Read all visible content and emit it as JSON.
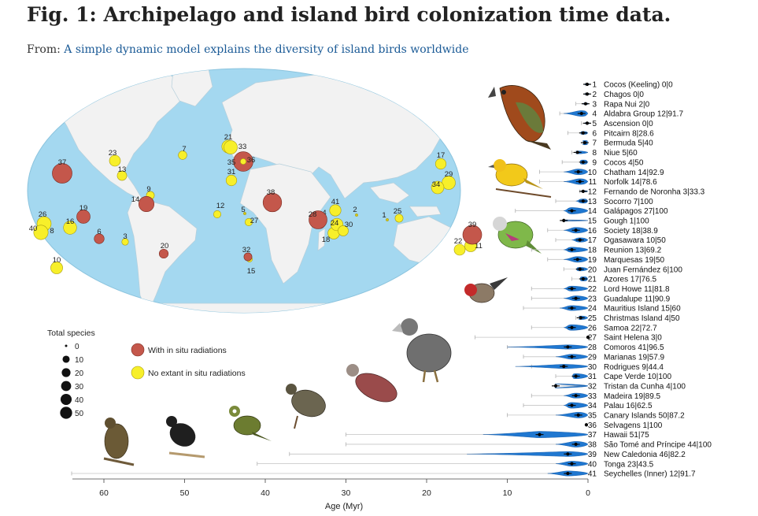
{
  "title": "Fig. 1: Archipelago and island bird colonization time data.",
  "from_label": "From:",
  "article_link": "A simple dynamic model explains the diversity of island birds worldwide",
  "map": {
    "ocean_color": "#a4d8f0",
    "land_color": "#f2f2f2",
    "radiation_color": "#c4574b",
    "no_radiation_color": "#f7ef2a",
    "islands": [
      {
        "label": "1",
        "kind": "none",
        "size": 0
      },
      {
        "label": "2",
        "kind": "none",
        "size": 0
      },
      {
        "label": "3",
        "kind": "none",
        "size": 2
      },
      {
        "label": "4",
        "kind": "radiation",
        "size": 12
      },
      {
        "label": "5",
        "kind": "none",
        "size": 0
      },
      {
        "label": "6",
        "kind": "radiation",
        "size": 8
      },
      {
        "label": "7",
        "kind": "none",
        "size": 5
      },
      {
        "label": "8",
        "kind": "none",
        "size": 5
      },
      {
        "label": "9",
        "kind": "none",
        "size": 4
      },
      {
        "label": "10",
        "kind": "none",
        "size": 14
      },
      {
        "label": "11",
        "kind": "none",
        "size": 14
      },
      {
        "label": "12",
        "kind": "none",
        "size": 3
      },
      {
        "label": "13",
        "kind": "none",
        "size": 7
      },
      {
        "label": "14",
        "kind": "radiation",
        "size": 27
      },
      {
        "label": "15",
        "kind": "none",
        "size": 1
      },
      {
        "label": "16",
        "kind": "none",
        "size": 18
      },
      {
        "label": "17",
        "kind": "none",
        "size": 10
      },
      {
        "label": "18",
        "kind": "none",
        "size": 13
      },
      {
        "label": "19",
        "kind": "radiation",
        "size": 19
      },
      {
        "label": "20",
        "kind": "radiation",
        "size": 6
      },
      {
        "label": "21",
        "kind": "none",
        "size": 17
      },
      {
        "label": "22",
        "kind": "none",
        "size": 11
      },
      {
        "label": "23",
        "kind": "none",
        "size": 11
      },
      {
        "label": "24",
        "kind": "none",
        "size": 15
      },
      {
        "label": "25",
        "kind": "none",
        "size": 4
      },
      {
        "label": "26",
        "kind": "none",
        "size": 22
      },
      {
        "label": "27",
        "kind": "none",
        "size": 3
      },
      {
        "label": "28",
        "kind": "radiation",
        "size": 41
      },
      {
        "label": "29",
        "kind": "none",
        "size": 19
      },
      {
        "label": "30",
        "kind": "none",
        "size": 9
      },
      {
        "label": "31",
        "kind": "none",
        "size": 10
      },
      {
        "label": "32",
        "kind": "radiation",
        "size": 4
      },
      {
        "label": "33",
        "kind": "none",
        "size": 19
      },
      {
        "label": "34",
        "kind": "none",
        "size": 16
      },
      {
        "label": "35",
        "kind": "radiation",
        "size": 50
      },
      {
        "label": "36",
        "kind": "none",
        "size": 1
      },
      {
        "label": "37",
        "kind": "radiation",
        "size": 51
      },
      {
        "label": "38",
        "kind": "radiation",
        "size": 44
      },
      {
        "label": "39",
        "kind": "radiation",
        "size": 46
      },
      {
        "label": "40",
        "kind": "none",
        "size": 23
      },
      {
        "label": "41",
        "kind": "none",
        "size": 12
      }
    ]
  },
  "legend": {
    "size_title": "Total species",
    "sizes": [
      "0",
      "10",
      "20",
      "30",
      "40",
      "50"
    ],
    "radiation_label": "With in situ radiations",
    "no_radiation_label": "No extant in situ radiations"
  },
  "chart_data": {
    "type": "violin",
    "xlabel": "Age (Myr)",
    "xlim": [
      65,
      0
    ],
    "xticks": [
      "60",
      "50",
      "40",
      "30",
      "20",
      "10",
      "0"
    ],
    "series_color": "#1f77d0",
    "rows": [
      {
        "num": "1",
        "name": "Cocos (Keeling)",
        "stats": "0|0",
        "max_age": 0.3,
        "spread": 0.2,
        "median": 0.1,
        "width": 0.1
      },
      {
        "num": "2",
        "name": "Chagos",
        "stats": "0|0",
        "max_age": 0.3,
        "spread": 0.2,
        "median": 0.1,
        "width": 0.1
      },
      {
        "num": "3",
        "name": "Rapa Nui",
        "stats": "2|0",
        "max_age": 1.5,
        "spread": 0.4,
        "median": 0.3,
        "width": 0.15
      },
      {
        "num": "4",
        "name": "Aldabra Group",
        "stats": "12|91.7",
        "max_age": 3.5,
        "spread": 3,
        "median": 0.8,
        "width": 0.8
      },
      {
        "num": "5",
        "name": "Ascension",
        "stats": "0|0",
        "max_age": 0.8,
        "spread": 0.2,
        "median": 0.1,
        "width": 0.1
      },
      {
        "num": "6",
        "name": "Pitcairn",
        "stats": "8|28.6",
        "max_age": 2.5,
        "spread": 0.8,
        "median": 0.6,
        "width": 0.4
      },
      {
        "num": "7",
        "name": "Bermuda",
        "stats": "5|40",
        "max_age": 0.5,
        "spread": 0.4,
        "median": 0.4,
        "width": 0.6
      },
      {
        "num": "8",
        "name": "Niue",
        "stats": "5|60",
        "max_age": 2,
        "spread": 0.8,
        "median": 1.3,
        "width": 0.4
      },
      {
        "num": "9",
        "name": "Cocos",
        "stats": "4|50",
        "max_age": 3.2,
        "spread": 1,
        "median": 0.6,
        "width": 0.6
      },
      {
        "num": "10",
        "name": "Chatham",
        "stats": "14|92.9",
        "max_age": 6,
        "spread": 3,
        "median": 1.2,
        "width": 0.8
      },
      {
        "num": "11",
        "name": "Norfolk",
        "stats": "14|78.6",
        "max_age": 6,
        "spread": 3,
        "median": 1,
        "width": 0.8
      },
      {
        "num": "12",
        "name": "Fernando de Noronha",
        "stats": "3|33.3",
        "max_age": 1,
        "spread": 0.3,
        "median": 0.6,
        "width": 0.2
      },
      {
        "num": "13",
        "name": "Socorro",
        "stats": "7|100",
        "max_age": 4,
        "spread": 1.5,
        "median": 0.6,
        "width": 0.6
      },
      {
        "num": "14",
        "name": "Galápagos",
        "stats": "27|100",
        "max_age": 9,
        "spread": 3,
        "median": 2,
        "width": 0.9
      },
      {
        "num": "15",
        "name": "Gough",
        "stats": "1|100",
        "max_age": 3,
        "spread": 0.3,
        "median": 3,
        "width": 0.2
      },
      {
        "num": "16",
        "name": "Society",
        "stats": "18|38.9",
        "max_age": 5,
        "spread": 3,
        "median": 1.5,
        "width": 0.8
      },
      {
        "num": "17",
        "name": "Ogasawara",
        "stats": "10|50",
        "max_age": 4,
        "spread": 2,
        "median": 1,
        "width": 0.6
      },
      {
        "num": "18",
        "name": "Reunion",
        "stats": "13|69.2",
        "max_age": 7,
        "spread": 3,
        "median": 2,
        "width": 0.7
      },
      {
        "num": "19",
        "name": "Marquesas",
        "stats": "19|50",
        "max_age": 5,
        "spread": 3,
        "median": 1.3,
        "width": 0.8
      },
      {
        "num": "20",
        "name": "Juan Fernández",
        "stats": "6|100",
        "max_age": 3,
        "spread": 1.5,
        "median": 1,
        "width": 0.5
      },
      {
        "num": "21",
        "name": "Azores",
        "stats": "17|76.5",
        "max_age": 2,
        "spread": 1,
        "median": 0.6,
        "width": 0.6
      },
      {
        "num": "22",
        "name": "Lord Howe",
        "stats": "11|81.8",
        "max_age": 7,
        "spread": 3,
        "median": 2,
        "width": 0.7
      },
      {
        "num": "23",
        "name": "Guadalupe",
        "stats": "11|90.9",
        "max_age": 7,
        "spread": 3,
        "median": 1.5,
        "width": 0.7
      },
      {
        "num": "24",
        "name": "Mauritius Island",
        "stats": "15|60",
        "max_age": 8,
        "spread": 3.5,
        "median": 2,
        "width": 0.7
      },
      {
        "num": "25",
        "name": "Christmas Island",
        "stats": "4|50",
        "max_age": 1.5,
        "spread": 0.8,
        "median": 0.9,
        "width": 0.5
      },
      {
        "num": "26",
        "name": "Samoa",
        "stats": "22|72.7",
        "max_age": 7,
        "spread": 3,
        "median": 2,
        "width": 0.8
      },
      {
        "num": "27",
        "name": "Saint Helena",
        "stats": "3|0",
        "max_age": 14,
        "spread": 0,
        "median": 0,
        "width": 0
      },
      {
        "num": "28",
        "name": "Comoros",
        "stats": "41|96.5",
        "max_age": 10,
        "spread": 10,
        "median": 2.5,
        "width": 0.6
      },
      {
        "num": "29",
        "name": "Marianas",
        "stats": "19|57.9",
        "max_age": 8,
        "spread": 4,
        "median": 2,
        "width": 0.7
      },
      {
        "num": "30",
        "name": "Rodrigues",
        "stats": "9|44.4",
        "max_age": 7,
        "spread": 9,
        "median": 3,
        "width": 0.6
      },
      {
        "num": "31",
        "name": "Cape Verde",
        "stats": "10|100",
        "max_age": 4,
        "spread": 2,
        "median": 1.5,
        "width": 0.7
      },
      {
        "num": "32",
        "name": "Tristan da Cunha",
        "stats": "4|100",
        "max_age": 4,
        "spread": 0.3,
        "median": 4,
        "width": 0.6
      },
      {
        "num": "33",
        "name": "Madeira",
        "stats": "19|89.5",
        "max_age": 7,
        "spread": 3,
        "median": 1.5,
        "width": 0.7
      },
      {
        "num": "34",
        "name": "Palau",
        "stats": "16|62.5",
        "max_age": 8,
        "spread": 3,
        "median": 2,
        "width": 0.8
      },
      {
        "num": "35",
        "name": "Canary Islands",
        "stats": "50|87.2",
        "max_age": 10,
        "spread": 4,
        "median": 1.2,
        "width": 0.8
      },
      {
        "num": "36",
        "name": "Selvagens",
        "stats": "1|100",
        "max_age": 0.2,
        "spread": 0,
        "median": 0.2,
        "width": 0
      },
      {
        "num": "37",
        "name": "Hawaii",
        "stats": "51|75",
        "max_age": 30,
        "spread": 13,
        "median": 6,
        "width": 0.9
      },
      {
        "num": "38",
        "name": "São Tomé and Príncipe",
        "stats": "44|100",
        "max_age": 30,
        "spread": 4,
        "median": 1.5,
        "width": 0.8
      },
      {
        "num": "39",
        "name": "New Caledonia",
        "stats": "46|82.2",
        "max_age": 37,
        "spread": 15,
        "median": 2.5,
        "width": 0.7
      },
      {
        "num": "40",
        "name": "Tonga",
        "stats": "23|43.5",
        "max_age": 41,
        "spread": 4,
        "median": 2,
        "width": 0.7
      },
      {
        "num": "41",
        "name": "Seychelles (Inner)",
        "stats": "12|91.7",
        "max_age": 64,
        "spread": 5,
        "median": 2.5,
        "width": 0.7
      }
    ]
  }
}
